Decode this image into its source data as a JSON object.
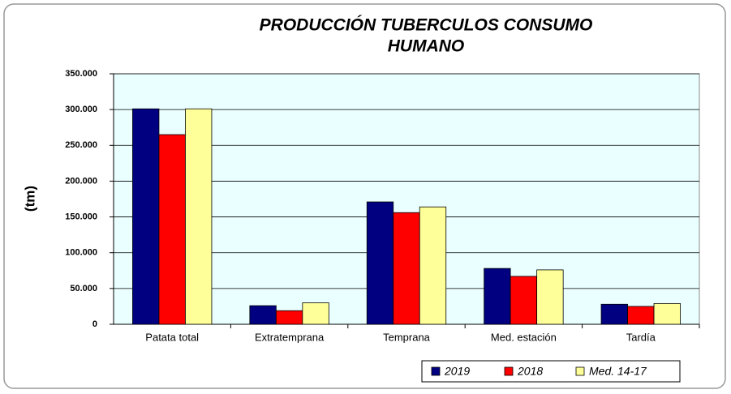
{
  "chart_data": {
    "type": "bar",
    "title": [
      "PRODUCCIÓN TUBERCULOS CONSUMO",
      "HUMANO"
    ],
    "y_label": "(tm)",
    "categories": [
      "Patata total",
      "Extratemprana",
      "Temprana",
      "Med. estación",
      "Tardía"
    ],
    "series": [
      {
        "name": "2019",
        "color": "#000080",
        "values": [
          301000,
          26000,
          171000,
          78000,
          28000
        ]
      },
      {
        "name": "2018",
        "color": "#ff0000",
        "values": [
          265000,
          19000,
          156000,
          67000,
          25000
        ]
      },
      {
        "name": "Med. 14-17",
        "color": "#ffff99",
        "values": [
          301000,
          30000,
          164000,
          76000,
          29000
        ]
      }
    ],
    "ylim": [
      0,
      350000
    ],
    "yticks": [
      0,
      {
        "value": 50000,
        "label": "50.000"
      },
      {
        "value": 100000,
        "label": "100.000"
      },
      {
        "value": 150000,
        "label": "150.000"
      },
      {
        "value": 200000,
        "label": "200.000"
      },
      {
        "value": 250000,
        "label": "250.000"
      },
      {
        "value": 300000,
        "label": "300.000"
      },
      {
        "value": 350000,
        "label": "350.000"
      }
    ],
    "grid": true,
    "legend": "bottom-right"
  }
}
